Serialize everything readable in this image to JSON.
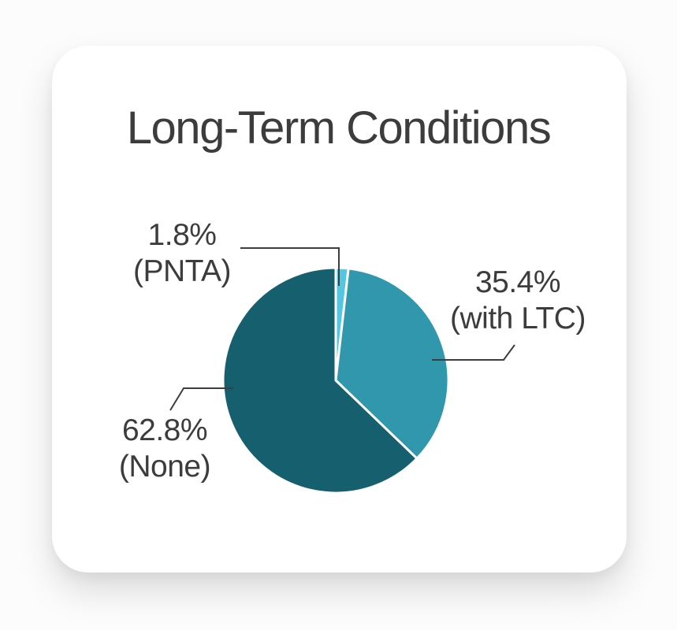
{
  "title": "Long-Term Conditions",
  "theme": {
    "text_color": "#3c3c3c",
    "leader_line_color": "#3d3d3d",
    "page_background": "#fcfcfc",
    "card_background": "#ffffff",
    "separator_color": "#ffffff"
  },
  "chart_data": {
    "type": "pie",
    "title": "Long-Term Conditions",
    "start_angle_deg": 0,
    "direction": "clockwise",
    "legend": "none",
    "slices": [
      {
        "label": "PNTA",
        "value": 1.8,
        "display_value": "1.8%",
        "display_label": "(PNTA)",
        "color": "#55c6e2"
      },
      {
        "label": "with LTC",
        "value": 35.4,
        "display_value": "35.4%",
        "display_label": "(with LTC)",
        "color": "#3097ac"
      },
      {
        "label": "None",
        "value": 62.8,
        "display_value": "62.8%",
        "display_label": "(None)",
        "color": "#155f6e"
      }
    ]
  }
}
